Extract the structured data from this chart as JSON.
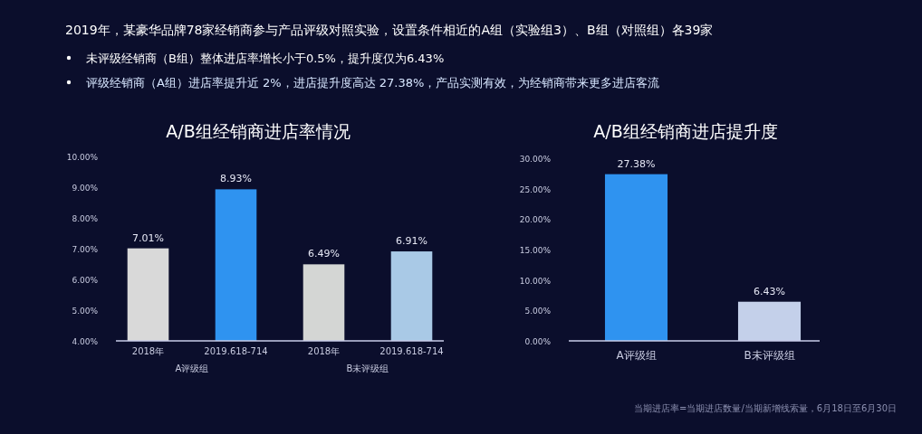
{
  "chart_data": [
    {
      "type": "bar",
      "title": "A/B组经销商进店率情况",
      "categories": [
        "2018年",
        "2019.618-714",
        "2018年",
        "2019.618-714"
      ],
      "values": [
        7.01,
        8.93,
        6.49,
        6.91
      ],
      "colors": [
        "#d9d9d9",
        "#2f93f0",
        "#d4d6d4",
        "#a9c9e6"
      ],
      "value_labels": [
        "7.01%",
        "8.93%",
        "6.49%",
        "6.91%"
      ],
      "ylim": [
        4,
        10
      ],
      "yticks": [
        {
          "value": 4,
          "label": "4.00%"
        },
        {
          "value": 5,
          "label": "5.00%"
        },
        {
          "value": 6,
          "label": "6.00%"
        },
        {
          "value": 7,
          "label": "7.00%"
        },
        {
          "value": 8,
          "label": "8.00%"
        },
        {
          "value": 9,
          "label": "9.00%"
        },
        {
          "value": 10,
          "label": "10.00%"
        }
      ],
      "grid": false,
      "annotations": [
        "2019年，某豪华品牌78家经销商参与产品评级对照实验，设置条件相近的A组（实验组3）、B组（对照组）各39家",
        "未评级经销商（B组）整体进店率增长小于0.5%，提升度仅为6.43%",
        "评级经销商（A组）进店率提升近 2%，进店提升度高达 27.38%，产品实测有效，为经销商带来更多进店客流",
        "A评级组",
        "B未评级组"
      ]
    },
    {
      "type": "bar",
      "title": "A/B组经销商进店提升度",
      "categories": [
        "A评级组",
        "B未评级组"
      ],
      "values": [
        27.38,
        6.43
      ],
      "colors": [
        "#2f93f0",
        "#c4d0ea"
      ],
      "value_labels": [
        "27.38%",
        "6.43%"
      ],
      "ylim": [
        0,
        30
      ],
      "yticks": [
        {
          "value": 0,
          "label": "0.00%"
        },
        {
          "value": 5,
          "label": "5.00%"
        },
        {
          "value": 10,
          "label": "10.00%"
        },
        {
          "value": 15,
          "label": "15.00%"
        },
        {
          "value": 20,
          "label": "20.00%"
        },
        {
          "value": 25,
          "label": "25.00%"
        },
        {
          "value": 30,
          "label": "30.00%"
        }
      ],
      "grid": false,
      "annotations": [
        "当期进店率=当期进店数量/当期新增线索量，6月18日至6月30日"
      ]
    }
  ]
}
